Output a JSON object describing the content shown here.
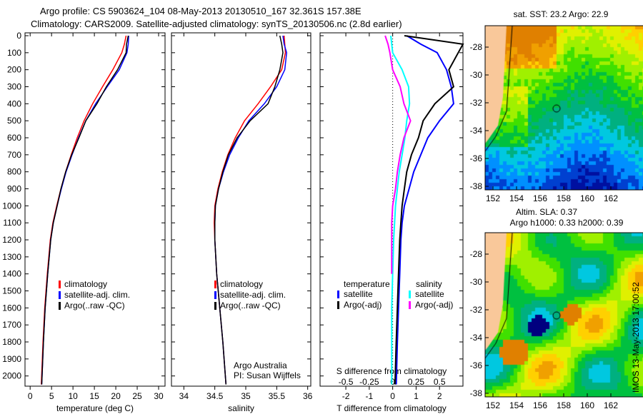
{
  "header": {
    "line1": "Argo profile: CS 5903624_104 08-May-2013 20130510_167 32.361S 157.38E",
    "line2": "Climatology: CARS2009. Satellite-adjusted climatology: synTS_20130506.nc (2.8d earlier)"
  },
  "colors": {
    "climatology": "#ff0000",
    "satellite": "#0000ff",
    "argo": "#000000",
    "sat_salinity": "#00ffff",
    "argo_salinity": "#ff00ff",
    "land": "#f9c89a"
  },
  "chart_data": [
    {
      "type": "line",
      "name": "temperature-profile",
      "xlabel": "temperature (deg C)",
      "ylabel": "",
      "xlim": [
        -1.2,
        31.5
      ],
      "ylim": [
        2060,
        0
      ],
      "xticks": [
        0,
        5,
        10,
        15,
        20,
        25,
        30
      ],
      "yticks": [
        0,
        100,
        200,
        300,
        400,
        500,
        600,
        700,
        800,
        900,
        1000,
        1100,
        1200,
        1300,
        1400,
        1500,
        1600,
        1700,
        1800,
        1900,
        2000
      ],
      "depth": [
        0,
        50,
        100,
        200,
        300,
        400,
        500,
        600,
        700,
        800,
        900,
        1000,
        1100,
        1200,
        1400,
        1600,
        1800,
        2050
      ],
      "legend": [
        "climatology",
        "satellite-adj. clim.",
        "Argo(..raw -QC)"
      ],
      "series": [
        {
          "name": "climatology",
          "color": "#ff0000",
          "values": [
            22.4,
            22.0,
            21.4,
            19.3,
            16.9,
            14.6,
            12.6,
            11.0,
            9.6,
            8.3,
            7.2,
            6.2,
            5.3,
            4.7,
            4.0,
            3.4,
            3.0,
            2.6
          ]
        },
        {
          "name": "satellite-adj. clim.",
          "color": "#0000ff",
          "values": [
            23.0,
            22.9,
            22.6,
            20.8,
            18.0,
            15.3,
            13.0,
            11.3,
            9.8,
            8.4,
            7.3,
            6.3,
            5.4,
            4.8,
            4.1,
            3.5,
            3.1,
            2.7
          ]
        },
        {
          "name": "Argo(..raw -QC)",
          "color": "#000000",
          "values": [
            22.9,
            22.5,
            22.4,
            20.4,
            17.8,
            15.6,
            13.0,
            11.4,
            9.7,
            8.3,
            7.2,
            6.3,
            5.4,
            4.8,
            4.1,
            3.5,
            3.1,
            2.7
          ]
        }
      ]
    },
    {
      "type": "line",
      "name": "salinity-profile",
      "xlabel": "salinity",
      "xlim": [
        33.8,
        36.05
      ],
      "ylim": [
        2060,
        0
      ],
      "xticks": [
        34,
        34.5,
        35,
        35.5,
        36
      ],
      "depth": [
        0,
        50,
        100,
        200,
        300,
        400,
        500,
        600,
        700,
        800,
        900,
        1000,
        1100,
        1200,
        1400,
        1600,
        1800,
        2050
      ],
      "legend": [
        "climatology",
        "satellite-adj. clim.",
        "Argo(..raw -QC)"
      ],
      "annotation": [
        "Argo Australia",
        "PI: Susan Wijffels"
      ],
      "series": [
        {
          "name": "climatology",
          "color": "#ff0000",
          "values": [
            35.62,
            35.63,
            35.64,
            35.58,
            35.4,
            35.2,
            34.98,
            34.83,
            34.71,
            34.62,
            34.55,
            34.5,
            34.49,
            34.5,
            34.53,
            34.58,
            34.63,
            34.68
          ]
        },
        {
          "name": "satellite-adj. clim.",
          "color": "#0000ff",
          "values": [
            35.6,
            35.62,
            35.66,
            35.63,
            35.5,
            35.3,
            35.05,
            34.88,
            34.74,
            34.64,
            34.56,
            34.51,
            34.5,
            34.5,
            34.53,
            34.58,
            34.63,
            34.68
          ]
        },
        {
          "name": "Argo(..raw -QC)",
          "color": "#000000",
          "values": [
            35.55,
            35.58,
            35.6,
            35.55,
            35.47,
            35.36,
            35.07,
            34.86,
            34.72,
            34.63,
            34.56,
            34.51,
            34.5,
            34.5,
            34.53,
            34.58,
            34.63,
            34.68
          ]
        }
      ]
    },
    {
      "type": "line",
      "name": "difference-profile",
      "xlabel": "T difference from climatology",
      "xlabel2": "S difference from climatology",
      "xlim": [
        -3.1,
        3.0
      ],
      "xticks": [
        -2,
        -1,
        0,
        1,
        2
      ],
      "s_xticks": [
        -0.5,
        -0.25,
        0,
        0.25,
        0.5
      ],
      "s_xtick_labels": [
        "-0.5",
        "-0.25",
        "0",
        "0.25",
        "0.5"
      ],
      "ylim": [
        2060,
        0
      ],
      "depth": [
        0,
        50,
        100,
        200,
        300,
        400,
        500,
        600,
        700,
        800,
        900,
        1000,
        1100,
        1200,
        1400,
        1600,
        1800,
        2050
      ],
      "legend": {
        "temperature": "temperature",
        "salinity": "salinity",
        "t_sat": "satellite",
        "t_argo": "Argo(-adj)",
        "s_sat": "satellite",
        "s_argo": "Argo(-adj)"
      },
      "series": [
        {
          "name": "T satellite",
          "color": "#0000ff",
          "units": "T",
          "values": [
            0.6,
            1.2,
            1.9,
            2.3,
            2.5,
            2.6,
            2.0,
            1.5,
            1.2,
            0.9,
            0.7,
            0.5,
            0.4,
            0.35,
            0.3,
            0.25,
            0.2,
            0.15
          ]
        },
        {
          "name": "T Argo(-adj)",
          "color": "#000000",
          "units": "T",
          "values": [
            0.5,
            3.0,
            2.8,
            2.4,
            2.6,
            1.8,
            1.3,
            1.1,
            0.8,
            0.6,
            0.5,
            0.4,
            0.35,
            0.3,
            0.25,
            0.2,
            0.15,
            0.1
          ]
        },
        {
          "name": "S satellite",
          "color": "#00ffff",
          "units": "S",
          "values": [
            -0.02,
            -0.01,
            0.0,
            0.1,
            0.17,
            0.18,
            0.15,
            0.13,
            0.1,
            0.07,
            0.05,
            0.03,
            0.02,
            0.01,
            0.0,
            -0.01,
            -0.01,
            -0.01
          ]
        },
        {
          "name": "S Argo(-adj)",
          "color": "#ff00ff",
          "units": "S",
          "values": [
            -0.08,
            -0.05,
            -0.03,
            0.0,
            0.08,
            0.12,
            0.19,
            0.12,
            0.08,
            0.05,
            0.03,
            0.0,
            -0.01,
            -0.01,
            -0.01,
            null,
            null,
            null
          ]
        }
      ]
    }
  ],
  "maps": [
    {
      "title": "sat. SST: 23.2 Argo: 22.9",
      "lat_ticks": [
        "-28",
        "-30",
        "-32",
        "-34",
        "-36",
        "-38"
      ],
      "lon_ticks": [
        "152",
        "154",
        "156",
        "158",
        "160",
        "162"
      ]
    },
    {
      "title1": "Altim. SLA: 0.37",
      "title2": "Argo h1000: 0.33 h2000: 0.39",
      "lat_ticks": [
        "-28",
        "-30",
        "-32",
        "-34",
        "-36",
        "-38"
      ],
      "lon_ticks": [
        "152",
        "154",
        "156",
        "158",
        "160",
        "162"
      ]
    }
  ],
  "footer": {
    "stamp": "IMOS 13-May-2013 17:00:52"
  }
}
